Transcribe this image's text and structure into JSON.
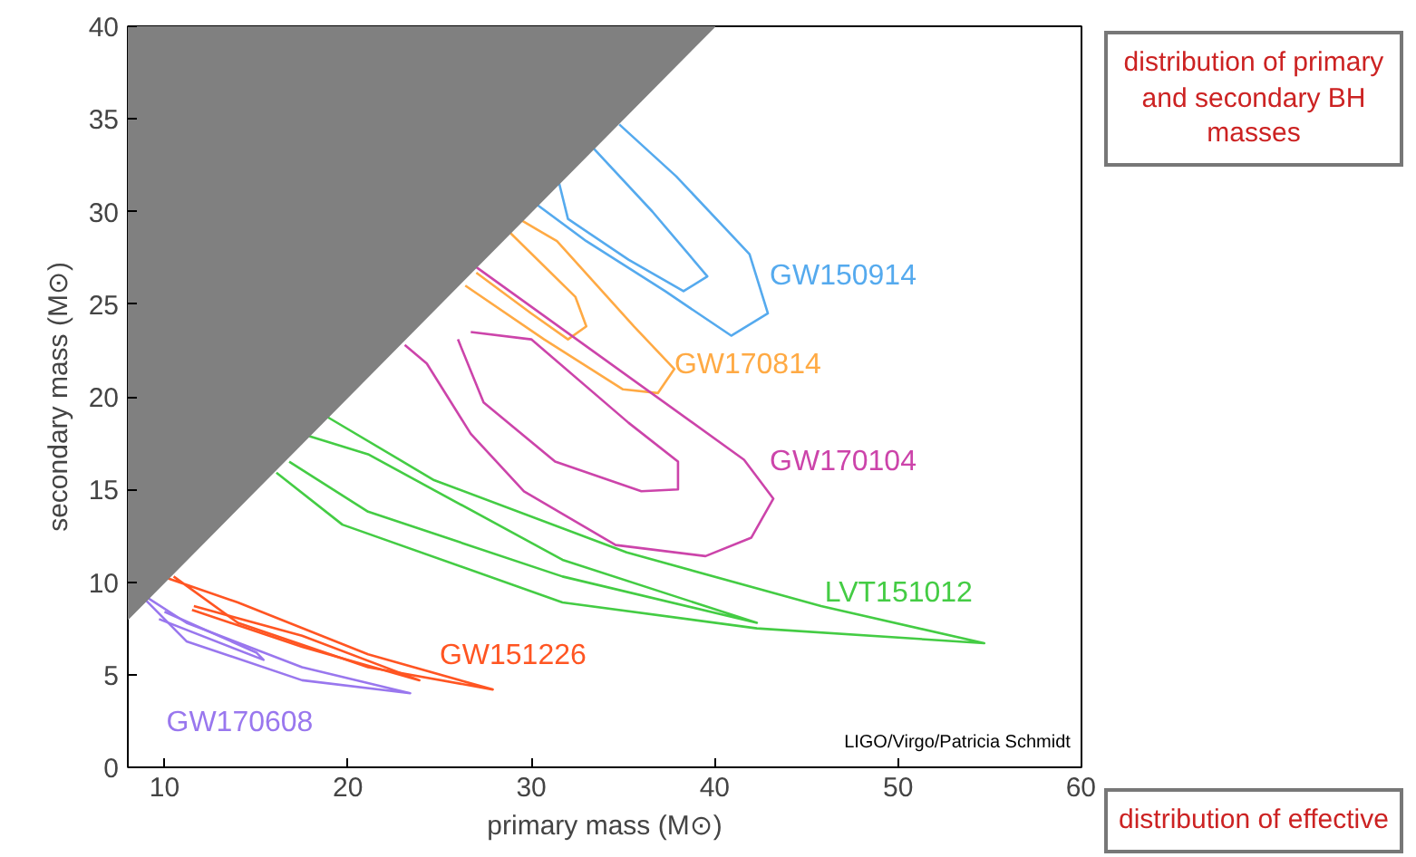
{
  "chart_data": {
    "type": "line",
    "xlabel": "primary mass (M⊙)",
    "ylabel": "secondary mass (M⊙)",
    "xlim": [
      8,
      60
    ],
    "ylim": [
      0,
      40
    ],
    "xticks": [
      10,
      20,
      30,
      40,
      50,
      60
    ],
    "yticks": [
      0,
      5,
      10,
      15,
      20,
      25,
      30,
      35,
      40
    ],
    "grid": false,
    "series": [
      {
        "type": "area",
        "color": "#808080",
        "x": [
          8,
          40,
          8
        ],
        "values": [
          8,
          40,
          40
        ]
      },
      {
        "name": "GW150914",
        "color": "#55aaee",
        "x": [
          34.8,
          37.9,
          41.9,
          42.9,
          40.9,
          37.3,
          33,
          30
        ],
        "values": [
          34.7,
          31.9,
          27.7,
          24.5,
          23.3,
          25.7,
          28.4,
          30.6
        ]
      },
      {
        "color": "#55aaee",
        "x": [
          33.4,
          36.6,
          39.6,
          38.3,
          35.3,
          32,
          31.5
        ],
        "values": [
          33.4,
          30,
          26.5,
          25.7,
          27.4,
          29.6,
          31.6
        ]
      },
      {
        "name": "GW170814",
        "color": "#ffaa44",
        "x": [
          29.5,
          31.4,
          35.6,
          37.8,
          36.9,
          35,
          30.7,
          26.4
        ],
        "values": [
          29.5,
          28.4,
          23.8,
          21.5,
          20.2,
          20.4,
          23.1,
          26
        ]
      },
      {
        "color": "#ffaa44",
        "x": [
          28.7,
          32.4,
          33,
          32,
          30,
          27
        ],
        "values": [
          29,
          25.4,
          23.8,
          23.1,
          24.5,
          26.7
        ]
      },
      {
        "name": "GW170104",
        "color": "#cc44aa",
        "x": [
          27,
          41.6,
          43.2,
          42,
          39.5,
          34.6,
          29.6,
          26.7,
          24.3,
          23.1
        ],
        "values": [
          27,
          16.6,
          14.5,
          12.4,
          11.4,
          12,
          14.9,
          18,
          21.8,
          22.8
        ]
      },
      {
        "color": "#cc44aa",
        "x": [
          26.7,
          30,
          35.3,
          38,
          38,
          36,
          31.3,
          27.4,
          26
        ],
        "values": [
          23.5,
          23.1,
          18.6,
          16.5,
          15,
          14.9,
          16.5,
          19.7,
          23.1
        ]
      },
      {
        "name": "LVT151012",
        "color": "#44cc44",
        "x": [
          16.1,
          19.7,
          31.7,
          42.3,
          54.7,
          45.8,
          35.2,
          24.7,
          18.9
        ],
        "values": [
          15.9,
          13.1,
          8.9,
          7.5,
          6.7,
          8.7,
          11.6,
          15.5,
          18.9
        ]
      },
      {
        "color": "#44cc44",
        "x": [
          16.8,
          21.1,
          31.7,
          42.3,
          31.7,
          21.1,
          17.5
        ],
        "values": [
          16.5,
          13.8,
          10.3,
          7.8,
          11.2,
          16.9,
          18
        ]
      },
      {
        "name": "GW151226",
        "color": "#ff5522",
        "x": [
          10.5,
          14,
          21.1,
          27.9,
          21.1,
          14,
          10.2
        ],
        "values": [
          10.3,
          7.8,
          5.4,
          4.2,
          6.1,
          8.9,
          10.2
        ]
      },
      {
        "color": "#ff5522",
        "x": [
          11.5,
          17.5,
          23.9,
          17.5,
          11.6
        ],
        "values": [
          8.5,
          6.5,
          4.7,
          7.1,
          8.7
        ]
      },
      {
        "name": "GW170608",
        "color": "#9977ee",
        "x": [
          8.9,
          11.2,
          17.5,
          23.4,
          17.5,
          11.2,
          9
        ],
        "values": [
          9.1,
          6.8,
          4.7,
          4,
          5.4,
          7.8,
          9.2
        ]
      },
      {
        "color": "#9977ee",
        "x": [
          9.7,
          15.4,
          15,
          10
        ],
        "values": [
          8,
          5.8,
          6.2,
          8.4
        ]
      }
    ],
    "annotations": [
      "LIGO/Virgo/Patricia Schmidt",
      "distribution of primary\nand secondary BH masses",
      "distribution of effective"
    ]
  }
}
